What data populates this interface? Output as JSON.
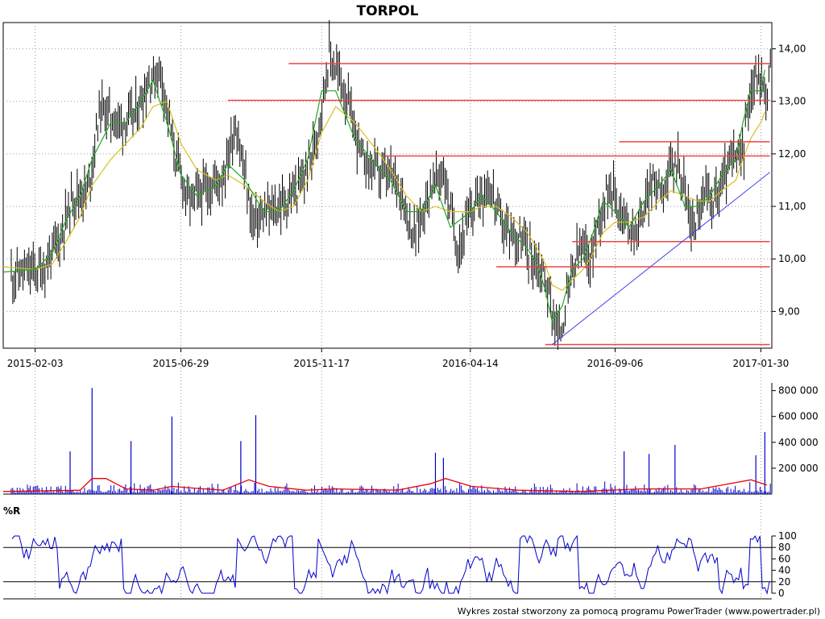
{
  "title": "TORPOL",
  "footer": "Wykres został stworzony za pomocą programu PowerTrader (www.powertrader.pl)",
  "colors": {
    "candles": "#006400",
    "ma_short": "#22aa22",
    "ma_long": "#d8c020",
    "resistance": "#ee4444",
    "trendline": "#4444ee",
    "volume": "#0000cc",
    "volume_ma": "#ee0000",
    "williams": "#0000cc"
  },
  "chart_data": [
    {
      "panel": "price",
      "type": "line",
      "title": "TORPOL",
      "ylim": [
        8.3,
        14.5
      ],
      "y_ticks": [
        "14,00",
        "13,00",
        "12,00",
        "11,00",
        "10,00",
        "9,00"
      ],
      "y_tick_values": [
        14,
        13,
        12,
        11,
        10,
        9
      ],
      "x_tick_labels": [
        "2015-02-03",
        "2015-06-29",
        "2015-11-17",
        "2016-04-14",
        "2016-09-06",
        "2017-01-30"
      ],
      "x_range": [
        "2015-01-02",
        "2017-02-10"
      ],
      "grid": true,
      "series": [
        {
          "role": "price_close",
          "points": [
            [
              "2015-01-02",
              9.7
            ],
            [
              "2015-02-03",
              9.8
            ],
            [
              "2015-02-20",
              10.4
            ],
            [
              "2015-03-05",
              11.2
            ],
            [
              "2015-03-20",
              11.3
            ],
            [
              "2015-04-01",
              12.9
            ],
            [
              "2015-04-20",
              12.6
            ],
            [
              "2015-05-05",
              12.7
            ],
            [
              "2015-05-20",
              13.4
            ],
            [
              "2015-06-01",
              13.6
            ],
            [
              "2015-06-15",
              12.0
            ],
            [
              "2015-06-29",
              11.1
            ],
            [
              "2015-07-15",
              11.3
            ],
            [
              "2015-08-03",
              11.6
            ],
            [
              "2015-08-15",
              12.6
            ],
            [
              "2015-09-01",
              10.7
            ],
            [
              "2015-09-20",
              10.9
            ],
            [
              "2015-10-05",
              11.1
            ],
            [
              "2015-10-20",
              11.4
            ],
            [
              "2015-11-03",
              12.2
            ],
            [
              "2015-11-17",
              13.9
            ],
            [
              "2015-12-01",
              13.3
            ],
            [
              "2015-12-20",
              11.9
            ],
            [
              "2016-01-10",
              11.6
            ],
            [
              "2016-01-25",
              11.5
            ],
            [
              "2016-02-10",
              10.4
            ],
            [
              "2016-02-25",
              11.3
            ],
            [
              "2016-03-10",
              11.7
            ],
            [
              "2016-03-25",
              10.2
            ],
            [
              "2016-04-14",
              11.2
            ],
            [
              "2016-04-25",
              11.4
            ],
            [
              "2016-05-10",
              10.6
            ],
            [
              "2016-05-25",
              10.4
            ],
            [
              "2016-06-10",
              10.0
            ],
            [
              "2016-06-20",
              9.7
            ],
            [
              "2016-06-28",
              9.0
            ],
            [
              "2016-07-05",
              8.5
            ],
            [
              "2016-07-15",
              9.5
            ],
            [
              "2016-07-25",
              10.2
            ],
            [
              "2016-08-05",
              10.0
            ],
            [
              "2016-08-15",
              10.9
            ],
            [
              "2016-08-25",
              11.5
            ],
            [
              "2016-09-06",
              10.8
            ],
            [
              "2016-09-20",
              10.5
            ],
            [
              "2016-10-05",
              11.4
            ],
            [
              "2016-10-20",
              11.5
            ],
            [
              "2016-11-01",
              11.9
            ],
            [
              "2016-11-15",
              10.6
            ],
            [
              "2016-11-28",
              11.2
            ],
            [
              "2016-12-10",
              11.2
            ],
            [
              "2016-12-22",
              11.8
            ],
            [
              "2017-01-05",
              12.0
            ],
            [
              "2017-01-12",
              13.2
            ],
            [
              "2017-01-20",
              13.5
            ],
            [
              "2017-01-30",
              13.1
            ],
            [
              "2017-02-03",
              14.1
            ]
          ]
        },
        {
          "role": "moving_average_short",
          "points": [
            [
              "2015-01-02",
              9.75
            ],
            [
              "2015-02-03",
              9.8
            ],
            [
              "2015-02-20",
              10.1
            ],
            [
              "2015-03-05",
              10.7
            ],
            [
              "2015-03-20",
              11.2
            ],
            [
              "2015-04-01",
              11.9
            ],
            [
              "2015-04-20",
              12.6
            ],
            [
              "2015-05-05",
              12.6
            ],
            [
              "2015-05-20",
              13.0
            ],
            [
              "2015-06-01",
              13.4
            ],
            [
              "2015-06-15",
              12.6
            ],
            [
              "2015-06-29",
              11.6
            ],
            [
              "2015-07-15",
              11.2
            ],
            [
              "2015-08-03",
              11.4
            ],
            [
              "2015-08-15",
              11.8
            ],
            [
              "2015-09-01",
              11.5
            ],
            [
              "2015-09-20",
              10.9
            ],
            [
              "2015-10-05",
              10.9
            ],
            [
              "2015-10-20",
              11.3
            ],
            [
              "2015-11-03",
              11.9
            ],
            [
              "2015-11-17",
              13.2
            ],
            [
              "2015-12-01",
              13.2
            ],
            [
              "2015-12-20",
              12.3
            ],
            [
              "2016-01-10",
              11.8
            ],
            [
              "2016-01-25",
              11.5
            ],
            [
              "2016-02-10",
              10.9
            ],
            [
              "2016-02-25",
              10.9
            ],
            [
              "2016-03-10",
              11.4
            ],
            [
              "2016-03-25",
              10.6
            ],
            [
              "2016-04-14",
              10.9
            ],
            [
              "2016-04-25",
              11.2
            ],
            [
              "2016-05-10",
              10.9
            ],
            [
              "2016-05-25",
              10.5
            ],
            [
              "2016-06-10",
              10.2
            ],
            [
              "2016-06-20",
              9.9
            ],
            [
              "2016-06-28",
              9.4
            ],
            [
              "2016-07-05",
              8.8
            ],
            [
              "2016-07-15",
              9.1
            ],
            [
              "2016-07-25",
              9.8
            ],
            [
              "2016-08-05",
              10.0
            ],
            [
              "2016-08-15",
              10.5
            ],
            [
              "2016-08-25",
              11.1
            ],
            [
              "2016-09-06",
              10.9
            ],
            [
              "2016-09-20",
              10.6
            ],
            [
              "2016-10-05",
              11.1
            ],
            [
              "2016-10-20",
              11.4
            ],
            [
              "2016-11-01",
              11.7
            ],
            [
              "2016-11-15",
              11.0
            ],
            [
              "2016-11-28",
              11.0
            ],
            [
              "2016-12-10",
              11.2
            ],
            [
              "2016-12-22",
              11.6
            ],
            [
              "2017-01-05",
              11.9
            ],
            [
              "2017-01-12",
              12.6
            ],
            [
              "2017-01-20",
              13.2
            ],
            [
              "2017-01-30",
              13.2
            ],
            [
              "2017-02-03",
              13.6
            ]
          ]
        },
        {
          "role": "moving_average_long",
          "points": [
            [
              "2015-01-02",
              9.85
            ],
            [
              "2015-02-03",
              9.8
            ],
            [
              "2015-02-20",
              9.9
            ],
            [
              "2015-03-05",
              10.3
            ],
            [
              "2015-03-20",
              10.8
            ],
            [
              "2015-04-01",
              11.4
            ],
            [
              "2015-04-20",
              11.9
            ],
            [
              "2015-05-05",
              12.2
            ],
            [
              "2015-05-20",
              12.5
            ],
            [
              "2015-06-01",
              12.9
            ],
            [
              "2015-06-15",
              13.0
            ],
            [
              "2015-06-29",
              12.2
            ],
            [
              "2015-07-15",
              11.7
            ],
            [
              "2015-08-03",
              11.5
            ],
            [
              "2015-08-15",
              11.6
            ],
            [
              "2015-09-01",
              11.4
            ],
            [
              "2015-09-20",
              11.1
            ],
            [
              "2015-10-05",
              10.9
            ],
            [
              "2015-10-20",
              11.0
            ],
            [
              "2015-11-03",
              11.5
            ],
            [
              "2015-11-17",
              12.4
            ],
            [
              "2015-12-01",
              12.9
            ],
            [
              "2015-12-20",
              12.6
            ],
            [
              "2016-01-10",
              12.1
            ],
            [
              "2016-01-25",
              11.7
            ],
            [
              "2016-02-10",
              11.2
            ],
            [
              "2016-02-25",
              10.9
            ],
            [
              "2016-03-10",
              11.0
            ],
            [
              "2016-03-25",
              10.9
            ],
            [
              "2016-04-14",
              10.9
            ],
            [
              "2016-04-25",
              11.0
            ],
            [
              "2016-05-10",
              11.0
            ],
            [
              "2016-05-25",
              10.8
            ],
            [
              "2016-06-10",
              10.5
            ],
            [
              "2016-06-20",
              10.2
            ],
            [
              "2016-06-28",
              9.9
            ],
            [
              "2016-07-05",
              9.5
            ],
            [
              "2016-07-15",
              9.4
            ],
            [
              "2016-07-25",
              9.6
            ],
            [
              "2016-08-05",
              9.8
            ],
            [
              "2016-08-15",
              10.1
            ],
            [
              "2016-08-25",
              10.5
            ],
            [
              "2016-09-06",
              10.7
            ],
            [
              "2016-09-20",
              10.7
            ],
            [
              "2016-10-05",
              10.8
            ],
            [
              "2016-10-20",
              11.1
            ],
            [
              "2016-11-01",
              11.3
            ],
            [
              "2016-11-15",
              11.2
            ],
            [
              "2016-11-28",
              11.1
            ],
            [
              "2016-12-10",
              11.1
            ],
            [
              "2016-12-22",
              11.3
            ],
            [
              "2017-01-05",
              11.5
            ],
            [
              "2017-01-12",
              11.9
            ],
            [
              "2017-01-20",
              12.3
            ],
            [
              "2017-01-30",
              12.6
            ],
            [
              "2017-02-03",
              12.8
            ]
          ]
        }
      ],
      "resistance_lines": [
        {
          "from": "2015-10-15",
          "to": "2017-02-08",
          "y": 13.72
        },
        {
          "from": "2015-08-15",
          "to": "2017-02-08",
          "y": 13.02
        },
        {
          "from": "2016-09-10",
          "to": "2017-02-08",
          "y": 12.23
        },
        {
          "from": "2016-01-20",
          "to": "2017-02-08",
          "y": 11.96
        },
        {
          "from": "2016-07-25",
          "to": "2017-02-08",
          "y": 10.33
        },
        {
          "from": "2016-05-10",
          "to": "2017-02-08",
          "y": 9.85
        },
        {
          "from": "2016-06-28",
          "to": "2017-02-08",
          "y": 8.37
        }
      ],
      "trendline": {
        "from": [
          "2016-07-05",
          8.37
        ],
        "to": [
          "2017-02-08",
          11.65
        ]
      }
    },
    {
      "panel": "volume",
      "type": "bar",
      "ylim": [
        0,
        860000
      ],
      "y_ticks": [
        "800 000",
        "600 000",
        "400 000",
        "200 000"
      ],
      "y_tick_values": [
        800000,
        600000,
        400000,
        200000
      ],
      "spikes": [
        [
          "2015-04-01",
          820000
        ],
        [
          "2015-03-10",
          330000
        ],
        [
          "2015-05-10",
          410000
        ],
        [
          "2015-06-20",
          600000
        ],
        [
          "2015-09-12",
          610000
        ],
        [
          "2015-08-28",
          410000
        ],
        [
          "2016-03-10",
          320000
        ],
        [
          "2016-03-18",
          280000
        ],
        [
          "2016-09-15",
          330000
        ],
        [
          "2016-10-10",
          310000
        ],
        [
          "2016-11-05",
          380000
        ],
        [
          "2017-01-25",
          300000
        ],
        [
          "2017-02-03",
          480000
        ]
      ],
      "volume_ma": [
        [
          "2015-01-02",
          20000
        ],
        [
          "2015-03-20",
          30000
        ],
        [
          "2015-04-01",
          120000
        ],
        [
          "2015-04-15",
          120000
        ],
        [
          "2015-05-05",
          40000
        ],
        [
          "2015-06-01",
          30000
        ],
        [
          "2015-06-20",
          60000
        ],
        [
          "2015-07-05",
          50000
        ],
        [
          "2015-08-10",
          30000
        ],
        [
          "2015-09-05",
          110000
        ],
        [
          "2015-09-25",
          60000
        ],
        [
          "2015-11-01",
          30000
        ],
        [
          "2015-12-01",
          40000
        ],
        [
          "2016-02-01",
          30000
        ],
        [
          "2016-03-05",
          80000
        ],
        [
          "2016-03-20",
          120000
        ],
        [
          "2016-04-15",
          60000
        ],
        [
          "2016-06-01",
          30000
        ],
        [
          "2016-08-01",
          20000
        ],
        [
          "2016-10-01",
          40000
        ],
        [
          "2016-12-01",
          40000
        ],
        [
          "2017-01-20",
          110000
        ],
        [
          "2017-02-05",
          70000
        ]
      ]
    },
    {
      "panel": "williams_r",
      "type": "line",
      "label": "%R",
      "ylim": [
        0,
        100
      ],
      "y_ticks": [
        "100",
        "80",
        "60",
        "40",
        "20",
        "0"
      ],
      "y_tick_values": [
        100,
        80,
        60,
        40,
        20,
        0
      ],
      "reference_lines": [
        80,
        20
      ]
    }
  ]
}
